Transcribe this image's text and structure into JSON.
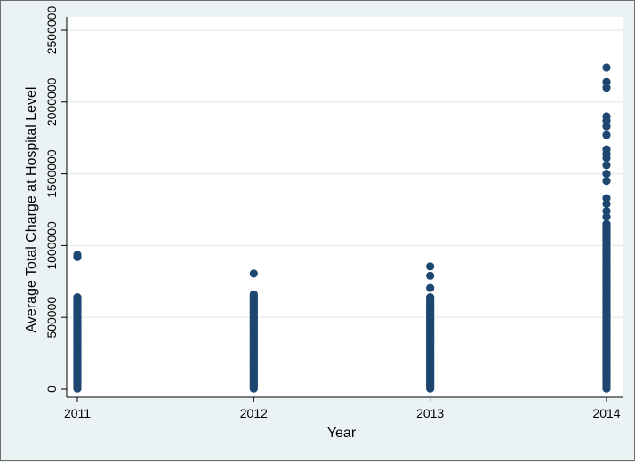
{
  "chart_data": {
    "type": "scatter",
    "xlabel": "Year",
    "ylabel": "Average Total Charge at Hospital Level",
    "ylim": [
      0,
      2500000
    ],
    "x_ticks": [
      2011,
      2012,
      2013,
      2014
    ],
    "y_ticks": [
      0,
      500000,
      1000000,
      1500000,
      2000000,
      2500000
    ],
    "y_tick_labels": [
      "0",
      "500000",
      "1000000",
      "1500000",
      "2000000",
      "2500000"
    ],
    "grid": true,
    "colors": {
      "marker": "#1d4770",
      "plot_bg": "#ffffff",
      "page_bg": "#eaf2f3",
      "grid": "#e8eef0"
    },
    "series": [
      {
        "points": [
          {
            "year": 2011,
            "dense_range": [
              5000,
              640000
            ],
            "outliers": [
              920000,
              935000
            ]
          },
          {
            "year": 2012,
            "dense_range": [
              5000,
              660000
            ],
            "outliers": [
              805000
            ]
          },
          {
            "year": 2013,
            "dense_range": [
              5000,
              640000
            ],
            "outliers": [
              705000,
              790000,
              855000
            ]
          },
          {
            "year": 2014,
            "dense_range": [
              5000,
              1150000
            ],
            "outliers": [
              1200000,
              1240000,
              1290000,
              1330000,
              1450000,
              1500000,
              1560000,
              1610000,
              1640000,
              1670000,
              1770000,
              1830000,
              1870000,
              1900000,
              2100000,
              2140000,
              2240000
            ]
          }
        ]
      }
    ]
  }
}
